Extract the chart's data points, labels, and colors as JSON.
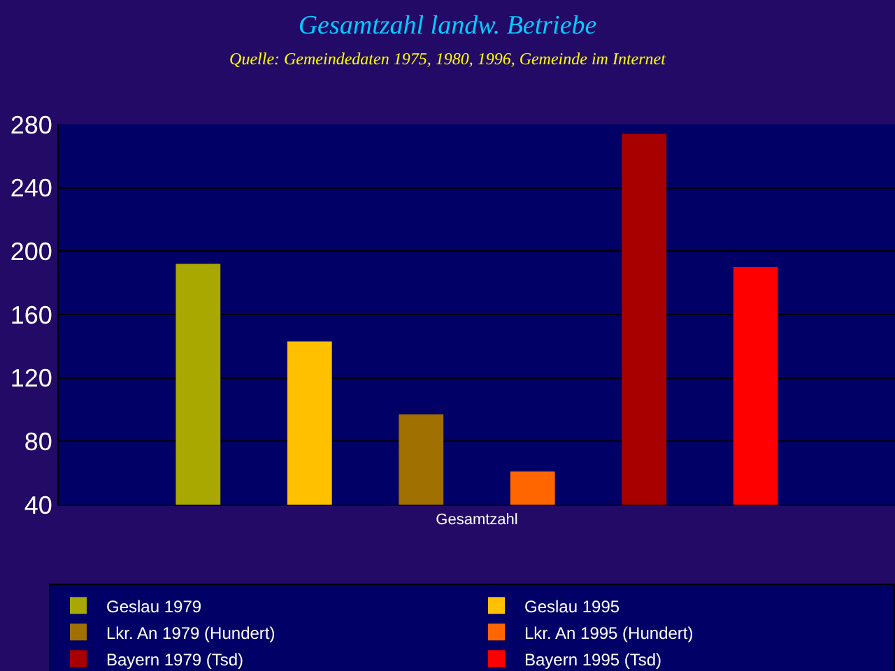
{
  "chart_data": {
    "type": "bar",
    "title": "Gesamtzahl landw. Betriebe",
    "subtitle": "Quelle: Gemeindedaten 1975, 1980, 1996, Gemeinde im Internet",
    "categories": [
      "Gesamtzahl"
    ],
    "series": [
      {
        "name": "Geslau 1979",
        "color": "#a8a800",
        "values": [
          192
        ]
      },
      {
        "name": "Geslau 1995",
        "color": "#ffc000",
        "values": [
          143
        ]
      },
      {
        "name": "Lkr. An 1979 (Hundert)",
        "color": "#a07000",
        "values": [
          97
        ]
      },
      {
        "name": "Lkr. An 1995 (Hundert)",
        "color": "#ff6600",
        "values": [
          61
        ]
      },
      {
        "name": "Bayern 1979 (Tsd)",
        "color": "#a80000",
        "values": [
          274
        ]
      },
      {
        "name": "Bayern 1995 (Tsd)",
        "color": "#ff0000",
        "values": [
          190
        ]
      }
    ],
    "ylim": [
      40,
      280
    ],
    "yticks": [
      40,
      80,
      120,
      160,
      200,
      240,
      280
    ],
    "grid": "y",
    "legend": "bottom"
  }
}
